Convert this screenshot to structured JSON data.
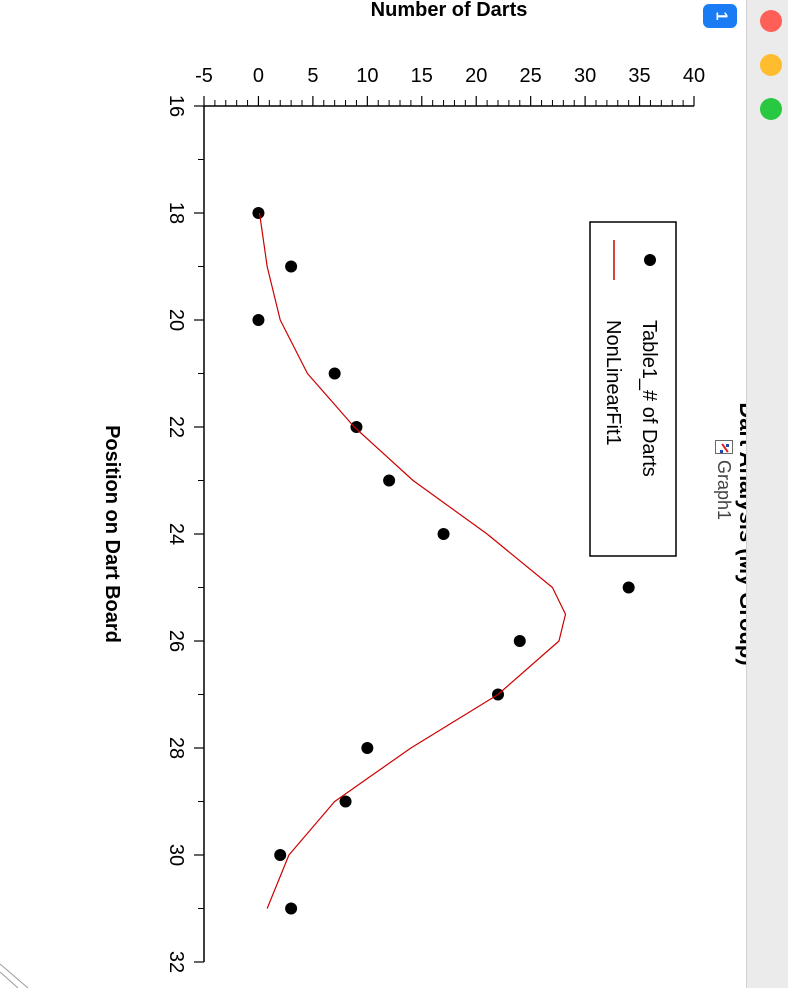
{
  "window": {
    "title": "Graph1",
    "badge": "1",
    "graph_icon": "graph-icon"
  },
  "chart_data": {
    "type": "scatter",
    "title": "Dart Analysis (My Group)",
    "xlabel": "Position on Dart Board",
    "ylabel": "Number of Darts",
    "xlim": [
      16,
      32
    ],
    "ylim": [
      -5,
      40
    ],
    "xticks": [
      16,
      18,
      20,
      22,
      24,
      26,
      28,
      30,
      32
    ],
    "yticks": [
      -5,
      0,
      5,
      10,
      15,
      20,
      25,
      30,
      35,
      40
    ],
    "series": [
      {
        "name": "Table1_# of Darts",
        "kind": "scatter",
        "color": "#000000",
        "x": [
          18,
          19,
          20,
          21,
          22,
          23,
          24,
          25,
          26,
          27,
          28,
          29,
          30,
          31
        ],
        "y": [
          0,
          3,
          0,
          7,
          9,
          12,
          17,
          34,
          24,
          22,
          10,
          8,
          2,
          3
        ]
      },
      {
        "name": "NonLinearFit1",
        "kind": "line",
        "color": "#cc0000",
        "x": [
          18,
          19,
          20,
          21,
          22,
          23,
          24,
          25,
          25.5,
          26,
          27,
          28,
          29,
          30,
          31
        ],
        "y": [
          0.1,
          0.8,
          2.0,
          4.5,
          8.8,
          14.2,
          21.0,
          27.0,
          28.2,
          27.6,
          22.0,
          14.0,
          7.0,
          2.8,
          0.8
        ]
      }
    ],
    "legend": {
      "position": "upper-left"
    }
  }
}
